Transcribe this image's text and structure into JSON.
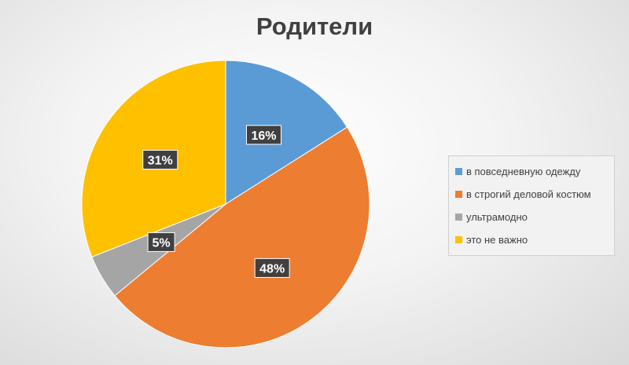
{
  "chart_data": {
    "type": "pie",
    "title": "Родители",
    "categories": [
      "в повседневную одежду",
      "в строгий деловой костюм",
      "ультрамодно",
      "это не важно"
    ],
    "values": [
      16,
      48,
      5,
      31
    ],
    "labels": [
      "16%",
      "48%",
      "5%",
      "31%"
    ],
    "colors": [
      "#5b9bd5",
      "#ed7d31",
      "#a5a5a5",
      "#ffc000"
    ],
    "legend": "right"
  }
}
